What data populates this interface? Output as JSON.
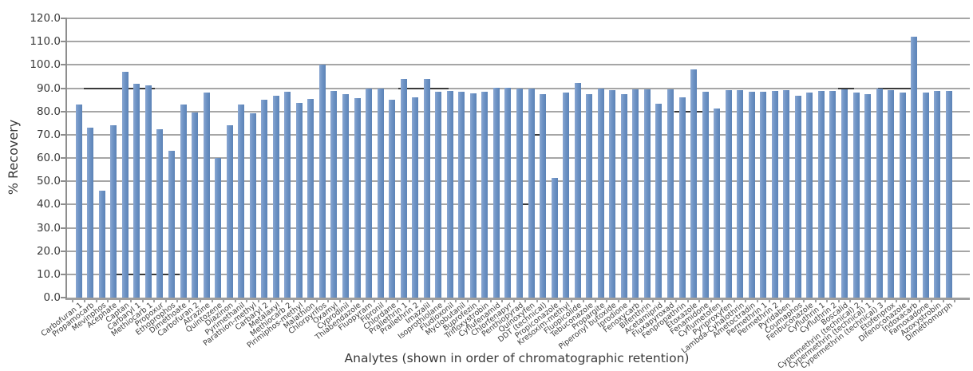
{
  "chart_data": {
    "type": "bar",
    "title": "",
    "xlabel": "Analytes (shown in order of chromatographic retention)",
    "ylabel": "% Recovery",
    "ylim": [
      0,
      120
    ],
    "ytick_step": 10,
    "y_tick_labels": [
      "0.0",
      "10.0",
      "20.0",
      "30.0",
      "40.0",
      "50.0",
      "60.0",
      "70.0",
      "80.0",
      "90.0",
      "100.0",
      "110.0",
      "120.0"
    ],
    "grid": "horizontal-gray-solid",
    "legend": "none",
    "bar_color": "#6e93c5",
    "bar_color_light": "#8aa7d2",
    "bar_color_dark": "#5c83b6",
    "categories": [
      "Carbofuran 1",
      "Propamocarb",
      "Mevinphos",
      "Acephate",
      "Captan",
      "Carbaryl 1",
      "Methiocarb 1",
      "Propoxur",
      "Ethoprophos",
      "Dimethoate",
      "Carbofuran 2",
      "Atrazine",
      "Quintozene",
      "Diazinon",
      "Pyrimethanil",
      "Parathion-methyl",
      "Carbaryl 2",
      "Metalaxyl",
      "Methiocarb 2",
      "Pirimiphos-methyl",
      "Malathion",
      "Chlorpyrifos",
      "Oxamyl",
      "Cyprodinil",
      "Thiabendazole",
      "Fluopyram",
      "Fipronil",
      "Chlordane",
      "Prallethrin 1",
      "Prallethrin 2",
      "Imazalil",
      "Isoprothiolane",
      "Fludioxonil",
      "Myclobutanil",
      "Buprofezin",
      "Trifloxystrobin",
      "Cyflufenamid",
      "Chlorfenapyr",
      "Penthiopyrad",
      "Quinoxyfen",
      "DDT (technical)",
      "Propiconazole",
      "Kresoxim-methyl",
      "Fluopicolide",
      "Tebuconazole",
      "Propargite",
      "Piperonyl butoxide",
      "Iprodione",
      "Fenoxycarb",
      "Bifenthrin",
      "Acetamiprid",
      "Fluxapyroxad",
      "Fenpropathrin",
      "Etoxazole",
      "Fenamidone",
      "Cyflumetofen",
      "Pyriproxyfen",
      "Lambda-Cyhalothrin",
      "Ametoctradin",
      "Permethrin 1",
      "Permethrin 2",
      "Pyridaben",
      "Coumaphos",
      "Fenbuconazole",
      "Cyfluthrin 1",
      "Cyfluthrin 2",
      "Boscalid",
      "Cypermethrin (technical) 2",
      "Cypermethrin (technical) 1",
      "Cypermethrin (technical) 3",
      "Etofenprox",
      "Difenoconazole",
      "Indoxacarb",
      "Famoxadone",
      "Azoxystrobin",
      "Dimethomorph"
    ],
    "values": [
      83.0,
      73.0,
      46.0,
      74.0,
      97.0,
      92.0,
      91.2,
      72.3,
      63.0,
      83.0,
      79.6,
      88.2,
      60.0,
      74.2,
      83.0,
      79.2,
      85.1,
      86.8,
      88.5,
      83.6,
      85.3,
      100.0,
      88.8,
      87.6,
      85.7,
      89.7,
      89.9,
      85.1,
      94.0,
      86.2,
      93.8,
      88.3,
      88.8,
      88.5,
      87.7,
      88.3,
      90.2,
      90.2,
      90.0,
      89.9,
      87.6,
      51.6,
      88.2,
      92.2,
      87.4,
      90.0,
      89.1,
      87.6,
      89.4,
      89.4,
      83.3,
      89.4,
      86.0,
      98.0,
      88.5,
      81.1,
      89.1,
      89.1,
      88.3,
      88.3,
      88.8,
      89.1,
      86.9,
      88.2,
      88.8,
      88.8,
      89.4,
      88.2,
      87.4,
      89.7,
      89.1,
      88.2,
      112.0,
      88.2,
      88.8,
      88.8
    ],
    "gridline_dark_segments": [
      {
        "level": 90,
        "from": 103,
        "to": 192
      },
      {
        "level": 90,
        "from": 497,
        "to": 560
      },
      {
        "level": 90,
        "from": 1048,
        "to": 1068
      },
      {
        "level": 90,
        "from": 1098,
        "to": 1140
      },
      {
        "level": 80,
        "from": 843,
        "to": 880
      },
      {
        "level": 70,
        "from": 663,
        "to": 676
      },
      {
        "level": 40,
        "from": 652,
        "to": 666
      },
      {
        "level": 10,
        "from": 140,
        "to": 223
      }
    ]
  }
}
